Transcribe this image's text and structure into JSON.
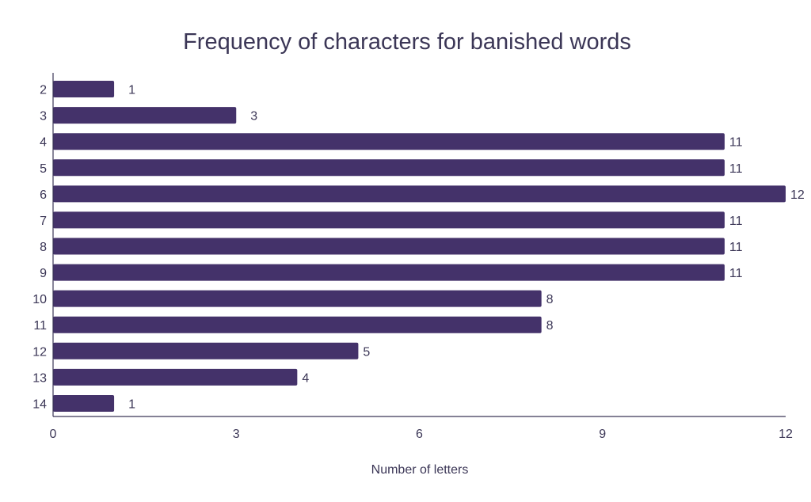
{
  "chart_data": {
    "type": "bar",
    "orientation": "horizontal",
    "title": "Frequency of characters for banished words",
    "xlabel": "Number of letters",
    "ylabel": "",
    "categories": [
      "2",
      "3",
      "4",
      "5",
      "6",
      "7",
      "8",
      "9",
      "10",
      "11",
      "12",
      "13",
      "14"
    ],
    "values": [
      1,
      3,
      11,
      11,
      12,
      11,
      11,
      11,
      8,
      8,
      5,
      4,
      1
    ],
    "xlim": [
      0,
      12
    ],
    "xticks": [
      "0",
      "3",
      "6",
      "9",
      "12"
    ],
    "grid": false,
    "legend": "none",
    "bar_color": "#44326a",
    "text_color": "#3b3656"
  }
}
